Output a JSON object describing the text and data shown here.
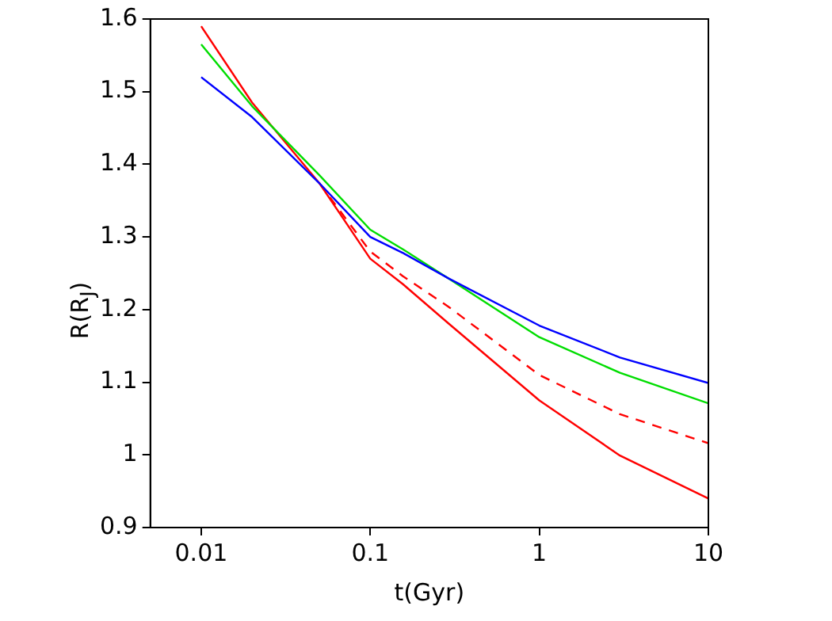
{
  "chart_data": {
    "type": "line",
    "xlabel": "t(Gyr)",
    "ylabel": "R(R$_{J}$)",
    "log": "x",
    "xlim": [
      0.005,
      10
    ],
    "xticks": [
      0.01,
      0.1,
      1,
      10
    ],
    "ylim": [
      0.9,
      1.6
    ],
    "yticks": [
      0.9,
      1,
      1.1,
      1.2,
      1.3,
      1.4,
      1.5,
      1.6
    ],
    "grid": false,
    "legend": false,
    "marker": "none",
    "series": [
      {
        "color": "#0000ff",
        "x": [
          0.01,
          0.02,
          0.05,
          0.1,
          0.156,
          0.29,
          1,
          3,
          10
        ],
        "values": [
          1.52,
          1.465,
          1.374,
          1.3,
          1.278,
          1.243,
          1.178,
          1.134,
          1.099
        ]
      },
      {
        "color": "#00dd00",
        "x": [
          0.01,
          0.02,
          0.05,
          0.1,
          0.156,
          0.29,
          1,
          3,
          10
        ],
        "values": [
          1.565,
          1.48,
          1.385,
          1.31,
          1.283,
          1.243,
          1.162,
          1.113,
          1.071
        ]
      },
      {
        "color": "#ff0000",
        "x": [
          0.01,
          0.02,
          0.05,
          0.1,
          0.156,
          0.29,
          1,
          3,
          10
        ],
        "values": [
          1.59,
          1.485,
          1.374,
          1.27,
          1.235,
          1.181,
          1.075,
          0.999,
          0.94
        ]
      },
      {
        "color": "#ff0000",
        "line_style": "dashed",
        "x": [
          0.05,
          0.1,
          0.156,
          0.29,
          1,
          3,
          10
        ],
        "values": [
          1.374,
          1.28,
          1.246,
          1.204,
          1.11,
          1.056,
          1.016
        ]
      }
    ]
  }
}
